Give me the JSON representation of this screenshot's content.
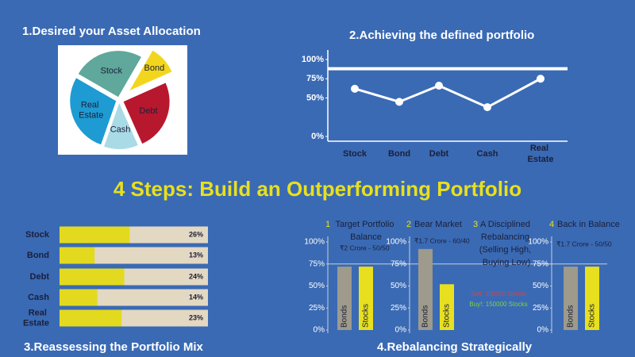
{
  "title": "4 Steps: Build an Outperforming Portfolio",
  "chart_data": [
    {
      "type": "pie",
      "title": "1.Desired your Asset Allocation",
      "categories": [
        "Stock",
        "Bond",
        "Debt",
        "Cash",
        "Real Estate"
      ],
      "values": [
        25,
        10,
        25,
        12,
        28
      ],
      "colors": [
        "#5fa89b",
        "#f2d61e",
        "#b8182e",
        "#a9dbe6",
        "#1e9bd2"
      ]
    },
    {
      "type": "line",
      "title": "2.Achieving the defined portfolio",
      "categories": [
        "Stock",
        "Bond",
        "Debt",
        "Cash",
        "Real Estate"
      ],
      "values": [
        62,
        45,
        66,
        38,
        75
      ],
      "target": 88,
      "color": "#ffffff",
      "ylim": [
        0,
        100
      ],
      "yticks": [
        {
          "value": 0,
          "label": "0%"
        },
        {
          "value": 50,
          "label": "50%"
        },
        {
          "value": 75,
          "label": "75%"
        },
        {
          "value": 100,
          "label": "100%"
        }
      ]
    },
    {
      "type": "hbar",
      "title": "3.Reassessing the Portfolio Mix",
      "categories": [
        "Stock",
        "Bond",
        "Debt",
        "Cash",
        "Real Estate"
      ],
      "values": [
        26,
        13,
        24,
        14,
        23
      ],
      "value_labels": [
        "26%",
        "13%",
        "24%",
        "14%",
        "23%"
      ],
      "xlim": [
        0,
        55
      ],
      "color": "#e3da1f",
      "track_color": "#e3d8c2"
    },
    {
      "type": "panels",
      "title": "4.Rebalancing Strategically",
      "ylim": [
        0,
        100
      ],
      "yticks": [
        {
          "value": 0,
          "label": "0%"
        },
        {
          "value": 25,
          "label": "25%"
        },
        {
          "value": 50,
          "label": "50%"
        },
        {
          "value": 75,
          "label": "75%"
        },
        {
          "value": 100,
          "label": "100%"
        }
      ],
      "reference": 75,
      "colors": [
        "#9e9a8c",
        "#e8e01e"
      ],
      "panels": [
        {
          "number": "1",
          "title": "Target Portfolio Balance",
          "subtitle": "₹2 Crore - 50/50",
          "categories": [
            "Bonds",
            "Stocks"
          ],
          "values": [
            72,
            72
          ]
        },
        {
          "number": "2",
          "title": "Bear Market",
          "subtitle": "₹1.7 Crore - 60/40",
          "categories": [
            "Bonds",
            "Stocks"
          ],
          "values": [
            92,
            52
          ]
        },
        {
          "number": "3",
          "title": "A Disciplined Rebalancing (Selling High, Buying Low)",
          "notes": [
            {
              "text": "Sell: 150000 Bonds",
              "color": "#e0413a"
            },
            {
              "text": "Buy!: 150000 Stocks",
              "color": "#7ad43a"
            }
          ]
        },
        {
          "number": "4",
          "title": "Back in Balance",
          "subtitle": "₹1.7 Crore - 50/50",
          "categories": [
            "Bonds",
            "Stocks"
          ],
          "values": [
            72,
            72
          ]
        }
      ]
    }
  ]
}
